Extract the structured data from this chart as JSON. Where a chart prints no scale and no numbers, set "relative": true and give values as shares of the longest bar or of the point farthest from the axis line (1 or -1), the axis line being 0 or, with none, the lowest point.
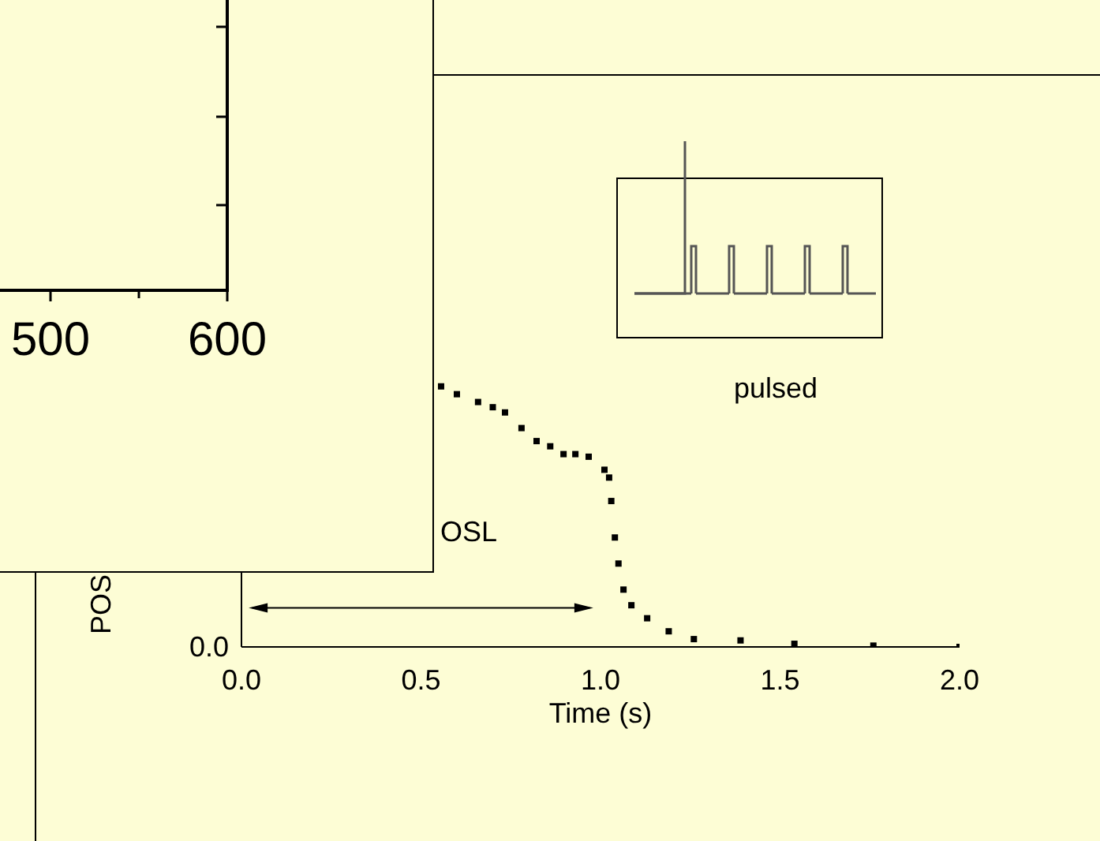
{
  "chart_data": [
    {
      "type": "scatter",
      "xlabel": "Time (s)",
      "ylabel": "POS",
      "relative": true,
      "marker": "square",
      "xlim": [
        0,
        2
      ],
      "xticks": [
        {
          "value": 0,
          "label": "0.0"
        },
        {
          "value": 0.5,
          "label": "0.5"
        },
        {
          "value": 1,
          "label": "1.0"
        },
        {
          "value": 1.5,
          "label": "1.5"
        },
        {
          "value": 2,
          "label": "2.0"
        }
      ],
      "x": [
        0.556,
        0.6,
        0.659,
        0.7,
        0.734,
        0.78,
        0.822,
        0.86,
        0.897,
        0.93,
        0.967,
        1.011,
        1.024,
        1.03,
        1.04,
        1.05,
        1.064,
        1.086,
        1.13,
        1.19,
        1.26,
        1.39,
        1.54,
        1.76,
        2.0
      ],
      "series": [
        {
          "color": "#000000",
          "values": [
            1.0,
            0.97,
            0.94,
            0.92,
            0.9,
            0.84,
            0.79,
            0.77,
            0.74,
            0.74,
            0.73,
            0.68,
            0.65,
            0.56,
            0.42,
            0.32,
            0.22,
            0.16,
            0.11,
            0.06,
            0.03,
            0.025,
            0.012,
            0.005,
            0.0
          ]
        }
      ],
      "annotations": [
        "OSL",
        "pulsed",
        "0.0"
      ]
    },
    {
      "type": "other",
      "annotations": [
        "500",
        "600"
      ]
    }
  ]
}
